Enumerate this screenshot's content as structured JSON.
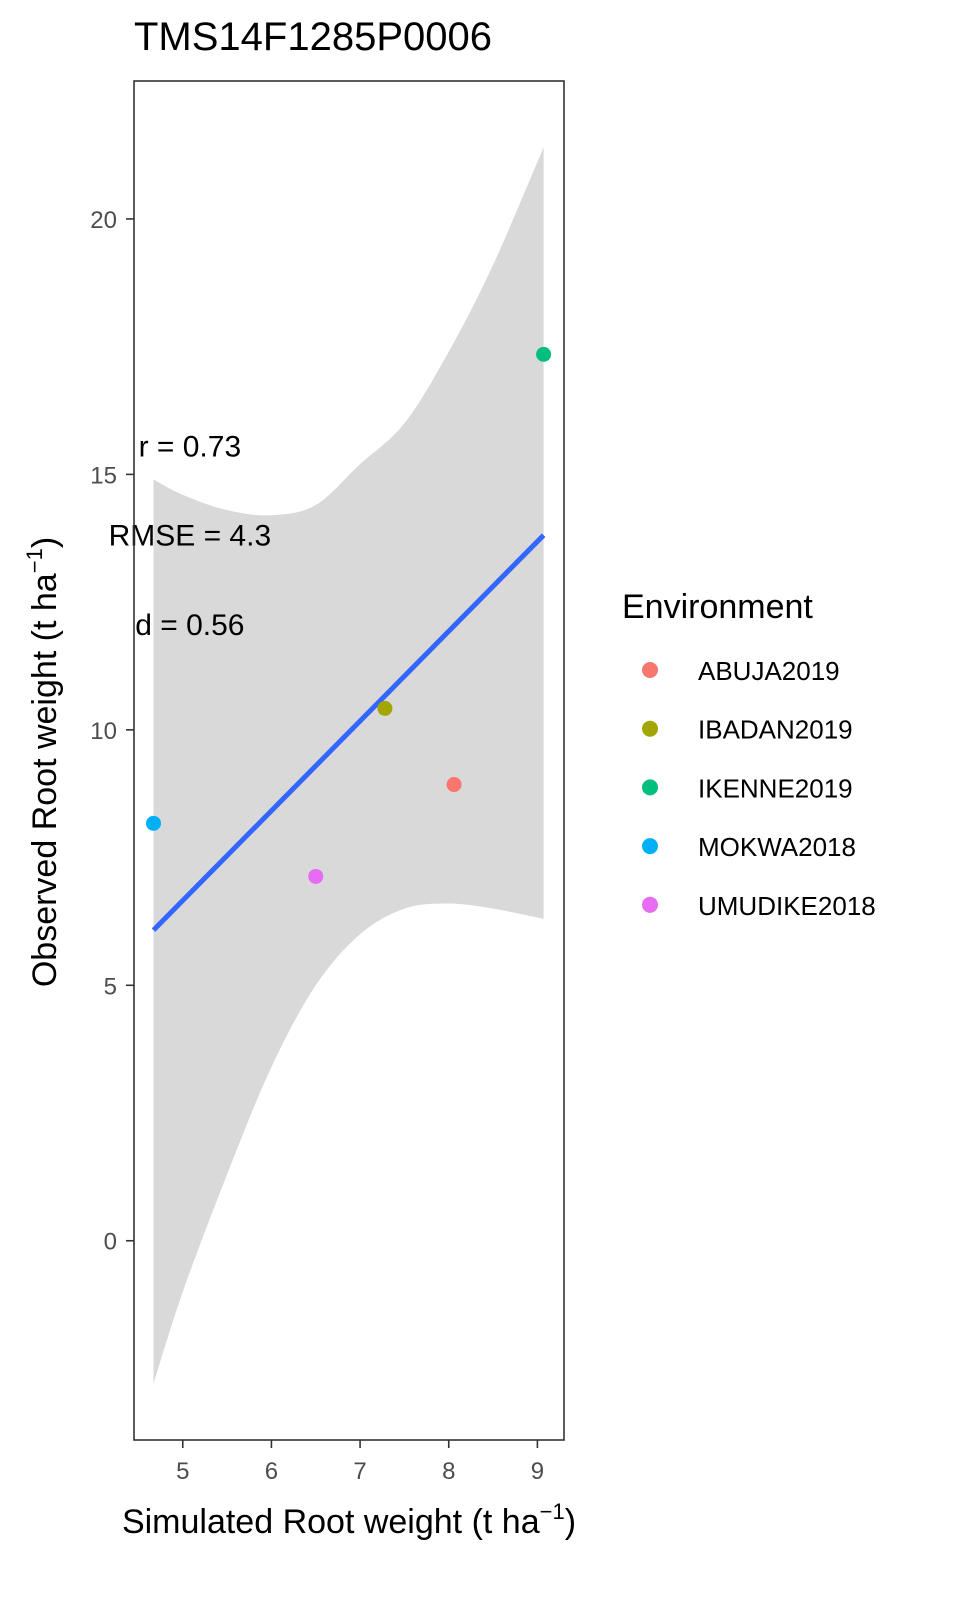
{
  "chart_data": {
    "type": "scatter",
    "title": "TMS14F1285P0006",
    "xlabel": {
      "main": "Simulated Root weight ",
      "unit_open": "(t ha",
      "sup": "−1",
      "unit_close": ")"
    },
    "ylabel": {
      "main": "Observed Root weight ",
      "unit_open": "(t ha",
      "sup": "−1",
      "unit_close": ")"
    },
    "xlim": [
      4.45,
      9.3
    ],
    "ylim": [
      -3.9,
      22.7
    ],
    "x_ticks": [
      5,
      6,
      7,
      8,
      9
    ],
    "x_tick_labels": [
      "5",
      "6",
      "7",
      "8",
      "9"
    ],
    "y_ticks": [
      0,
      5,
      10,
      15,
      20
    ],
    "y_tick_labels": [
      "0",
      "5",
      "10",
      "15",
      "20"
    ],
    "grid": false,
    "legend": {
      "title": "Environment",
      "placement": "right"
    },
    "points": [
      {
        "series": "ABUJA2019",
        "x": 8.06,
        "y": 8.93,
        "color": "#F8766D"
      },
      {
        "series": "IBADAN2019",
        "x": 7.28,
        "y": 10.42,
        "color": "#A3A500"
      },
      {
        "series": "IKENNE2019",
        "x": 9.07,
        "y": 17.35,
        "color": "#00BF7D"
      },
      {
        "series": "MOKWA2018",
        "x": 4.67,
        "y": 8.17,
        "color": "#00B0F6"
      },
      {
        "series": "UMUDIKE2018",
        "x": 6.5,
        "y": 7.13,
        "color": "#E76BF3"
      }
    ],
    "fit_line": {
      "x": [
        4.67,
        9.07
      ],
      "y": [
        6.08,
        13.81
      ],
      "color": "#3366FF"
    },
    "confidence_band": {
      "x": [
        4.67,
        5.0,
        5.5,
        6.0,
        6.5,
        7.0,
        7.5,
        8.0,
        8.5,
        9.07
      ],
      "lower": [
        -2.8,
        -1.0,
        1.3,
        3.4,
        5.0,
        6.0,
        6.5,
        6.6,
        6.5,
        6.3
      ],
      "upper": [
        14.9,
        14.6,
        14.3,
        14.2,
        14.4,
        15.2,
        16.0,
        17.4,
        19.1,
        21.4
      ],
      "color": "#d9d9d9"
    },
    "annotations": [
      {
        "text": "r = 0.73",
        "x": 5.08,
        "y": 15.55
      },
      {
        "text": "RMSE = 4.3",
        "x": 5.08,
        "y": 13.8
      },
      {
        "text": "d = 0.56",
        "x": 5.08,
        "y": 12.05
      }
    ]
  }
}
